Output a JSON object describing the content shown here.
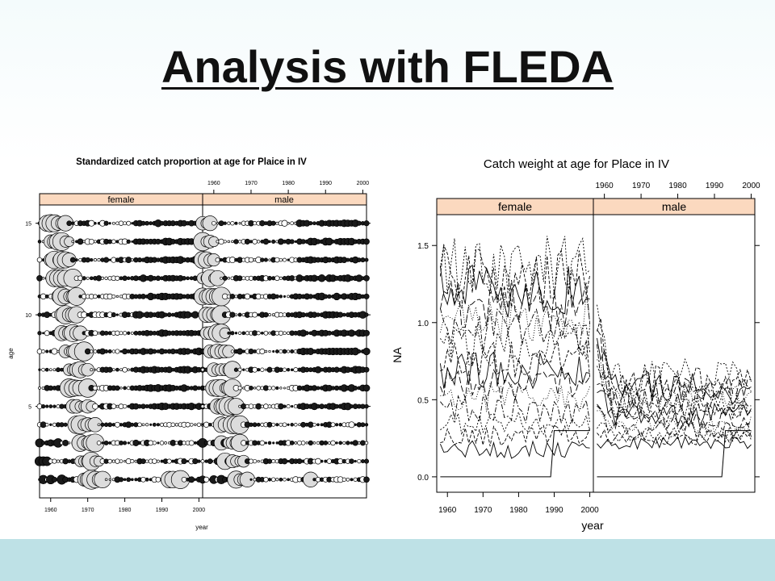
{
  "slide": {
    "title": "Analysis with FLEDA"
  },
  "chart_data": [
    {
      "type": "scatter",
      "title": "Standardized catch proportion at age for Plaice in IV",
      "xlabel": "year",
      "ylabel": "age",
      "panels": [
        "female",
        "male"
      ],
      "x_ticks": [
        "1960",
        "1970",
        "1980",
        "1990",
        "2000"
      ],
      "y_ticks": [
        "5",
        "10",
        "15"
      ],
      "xlim": [
        1957,
        2001
      ],
      "ylim": [
        0,
        16
      ],
      "marker": "circle size proportional to standardized catch proportion; filled = negative, open = positive",
      "grid": false
    },
    {
      "type": "line",
      "title": "Catch weight at age for Place in IV",
      "xlabel": "year",
      "ylabel": "NA",
      "panels": [
        "female",
        "male"
      ],
      "x_ticks": [
        "1960",
        "1970",
        "1980",
        "1990",
        "2000"
      ],
      "y_ticks": [
        "0.0",
        "0.5",
        "1.0",
        "1.5"
      ],
      "xlim": [
        1957,
        2001
      ],
      "ylim": [
        -0.1,
        1.7
      ],
      "grid": false
    }
  ]
}
